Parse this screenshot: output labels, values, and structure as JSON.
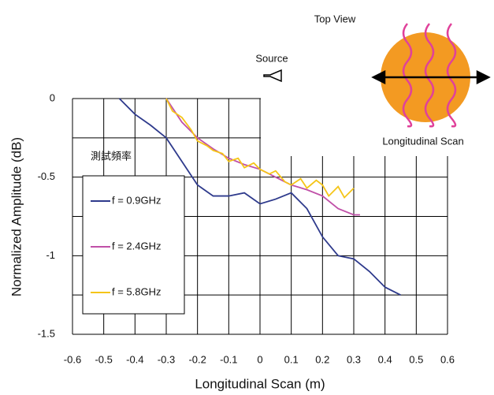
{
  "chart_data": {
    "type": "line",
    "x_label": "Longitudinal Scan (m)",
    "y_label": "Normalized Amplitude (dB)",
    "xlim": [
      -0.6,
      0.6
    ],
    "ylim": [
      -1.5,
      0
    ],
    "xticks": [
      -0.6,
      -0.5,
      -0.4,
      -0.3,
      -0.2,
      -0.1,
      0,
      0.1,
      0.2,
      0.3,
      0.4,
      0.5,
      0.6
    ],
    "yticks": [
      0,
      -0.5,
      -1,
      -1.5
    ],
    "grid": true,
    "legend_title": "測試頻率",
    "series": [
      {
        "name": "f = 0.9GHz",
        "color": "#2e3a8c",
        "x": [
          -0.45,
          -0.4,
          -0.35,
          -0.3,
          -0.25,
          -0.2,
          -0.15,
          -0.1,
          -0.05,
          0,
          0.05,
          0.1,
          0.15,
          0.2,
          0.25,
          0.3,
          0.35,
          0.4,
          0.45
        ],
        "values": [
          0,
          -0.1,
          -0.17,
          -0.25,
          -0.4,
          -0.55,
          -0.62,
          -0.62,
          -0.6,
          -0.67,
          -0.64,
          -0.6,
          -0.7,
          -0.88,
          -1.0,
          -1.02,
          -1.1,
          -1.2,
          -1.25
        ]
      },
      {
        "name": "f = 2.4GHz",
        "color": "#c050a8",
        "x": [
          -0.3,
          -0.25,
          -0.2,
          -0.15,
          -0.1,
          -0.05,
          0,
          0.05,
          0.1,
          0.15,
          0.2,
          0.25,
          0.3,
          0.32
        ],
        "values": [
          0,
          -0.15,
          -0.25,
          -0.32,
          -0.38,
          -0.42,
          -0.45,
          -0.5,
          -0.55,
          -0.58,
          -0.62,
          -0.7,
          -0.74,
          -0.74
        ]
      },
      {
        "name": "f = 5.8GHz",
        "color": "#f5c518",
        "x": [
          -0.3,
          -0.28,
          -0.25,
          -0.22,
          -0.2,
          -0.17,
          -0.15,
          -0.12,
          -0.1,
          -0.07,
          -0.05,
          -0.02,
          0,
          0.03,
          0.05,
          0.08,
          0.1,
          0.13,
          0.15,
          0.18,
          0.2,
          0.22,
          0.25,
          0.27,
          0.3
        ],
        "values": [
          0,
          -0.08,
          -0.12,
          -0.2,
          -0.27,
          -0.3,
          -0.33,
          -0.35,
          -0.4,
          -0.38,
          -0.44,
          -0.41,
          -0.45,
          -0.48,
          -0.46,
          -0.53,
          -0.55,
          -0.51,
          -0.57,
          -0.52,
          -0.55,
          -0.62,
          -0.56,
          -0.63,
          -0.57
        ]
      }
    ],
    "annotations": {
      "top_view": "Top View",
      "source": "Source",
      "scan": "Longitudinal Scan"
    }
  }
}
